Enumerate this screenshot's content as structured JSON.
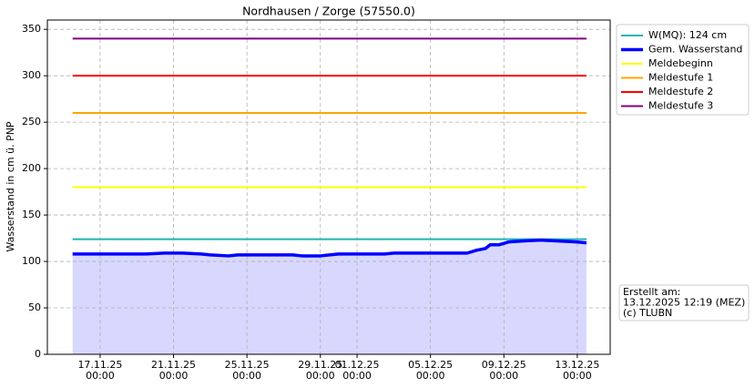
{
  "chart_data": {
    "type": "line",
    "title": "Nordhausen / Zorge (57550.0)",
    "y_label": "Wasserstand in cm ü. PNP",
    "xlim": [
      "14.11.25 03:00",
      "14.12.25 19:00"
    ],
    "xticks": [
      "17.11.25 00:00",
      "21.11.25 00:00",
      "25.11.25 00:00",
      "29.11.25 00:00",
      "01.12.25 00:00",
      "05.12.25 00:00",
      "09.12.25 00:00",
      "13.12.25 00:00"
    ],
    "ylim": [
      0,
      360
    ],
    "yticks": [
      0,
      50,
      100,
      150,
      200,
      250,
      300,
      350
    ],
    "grid": true,
    "legend": "outside-right",
    "fill_color": "#d8d8ff",
    "series": [
      {
        "name": "W(MQ): 124 cm",
        "color": "#1fb5b5",
        "width": 2,
        "x": [
          "15.11.25 12:00",
          "13.12.25 12:00"
        ],
        "values": [
          124,
          124
        ]
      },
      {
        "name": "Gem. Wasserstand",
        "color": "#0000ff",
        "width": 3.5,
        "filled": true,
        "x": [
          "15.11.25 12:00",
          "16.11.25 12:00",
          "17.11.25 12:00",
          "18.11.25 12:00",
          "19.11.25 12:00",
          "20.11.25 12:00",
          "21.11.25 12:00",
          "22.11.25 12:00",
          "23.11.25 00:00",
          "24.11.25 00:00",
          "24.11.25 12:00",
          "25.11.25 12:00",
          "26.11.25 12:00",
          "27.11.25 12:00",
          "28.11.25 00:00",
          "29.11.25 00:00",
          "29.11.25 12:00",
          "30.11.25 00:00",
          "01.12.25 12:00",
          "02.12.25 12:00",
          "03.12.25 00:00",
          "04.12.25 12:00",
          "05.12.25 12:00",
          "06.12.25 12:00",
          "07.12.25 00:00",
          "07.12.25 12:00",
          "08.12.25 00:00",
          "08.12.25 06:00",
          "08.12.25 18:00",
          "09.12.25 06:00",
          "10.12.25 00:00",
          "11.12.25 00:00",
          "12.12.25 00:00",
          "13.12.25 00:00",
          "13.12.25 12:00"
        ],
        "values": [
          108,
          108,
          108,
          108,
          108,
          109,
          109,
          108,
          107,
          106,
          107,
          107,
          107,
          107,
          106,
          106,
          107,
          108,
          108,
          108,
          109,
          109,
          109,
          109,
          109,
          112,
          114,
          118,
          118,
          121,
          122,
          123,
          122,
          121,
          120
        ]
      },
      {
        "name": "Meldebeginn",
        "color": "#ffff00",
        "width": 2,
        "x": [
          "15.11.25 12:00",
          "13.12.25 12:00"
        ],
        "values": [
          180,
          180
        ]
      },
      {
        "name": "Meldestufe 1",
        "color": "#ffa500",
        "width": 2,
        "x": [
          "15.11.25 12:00",
          "13.12.25 12:00"
        ],
        "values": [
          260,
          260
        ]
      },
      {
        "name": "Meldestufe 2",
        "color": "#ff0000",
        "width": 2,
        "x": [
          "15.11.25 12:00",
          "13.12.25 12:00"
        ],
        "values": [
          300,
          300
        ]
      },
      {
        "name": "Meldestufe 3",
        "color": "#800080",
        "width": 2,
        "x": [
          "15.11.25 12:00",
          "13.12.25 12:00"
        ],
        "values": [
          340,
          340
        ]
      }
    ],
    "annotation": [
      "Erstellt am:",
      "13.12.2025 12:19 (MEZ)",
      "(c) TLUBN"
    ]
  }
}
